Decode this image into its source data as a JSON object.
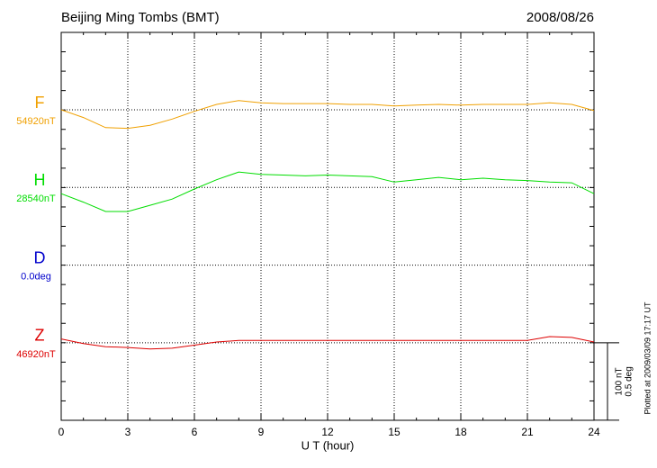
{
  "chart_data": {
    "type": "line",
    "title": "Beijing Ming Tombs (BMT)",
    "date": "2008/08/26",
    "xlabel": "U T (hour)",
    "xlim": [
      0,
      24
    ],
    "xticks": [
      0,
      3,
      6,
      9,
      12,
      15,
      18,
      21,
      24
    ],
    "x": [
      0,
      1,
      2,
      3,
      4,
      5,
      6,
      7,
      8,
      9,
      10,
      11,
      12,
      13,
      14,
      15,
      16,
      17,
      18,
      19,
      20,
      21,
      22,
      23,
      24
    ],
    "series": [
      {
        "name": "F",
        "color": "#f0a000",
        "baseline": {
          "value": 54920,
          "label": "54920nT"
        },
        "values": [
          54920,
          54910,
          54897,
          54896,
          54900,
          54908,
          54918,
          54927,
          54932,
          54929,
          54928,
          54928,
          54928,
          54927,
          54927,
          54925,
          54926,
          54927,
          54926,
          54927,
          54927,
          54927,
          54929,
          54927,
          54919
        ]
      },
      {
        "name": "H",
        "color": "#00dd00",
        "baseline": {
          "value": 28540,
          "label": "28540nT"
        },
        "values": [
          28532,
          28521,
          28509,
          28509,
          28517,
          28525,
          28538,
          28550,
          28560,
          28557,
          28556,
          28555,
          28556,
          28555,
          28554,
          28547,
          28550,
          28553,
          28550,
          28552,
          28550,
          28549,
          28547,
          28546,
          28532
        ]
      },
      {
        "name": "D",
        "color": "#0000cc",
        "baseline": {
          "value": 0,
          "label": "0.0deg"
        }
      },
      {
        "name": "Z",
        "color": "#dd0000",
        "baseline": {
          "value": 46920,
          "label": "46920nT"
        },
        "values": [
          46925,
          46919,
          46915,
          46914,
          46912,
          46913,
          46917,
          46921,
          46923,
          46923,
          46923,
          46923,
          46923,
          46923,
          46923,
          46923,
          46923,
          46923,
          46923,
          46923,
          46923,
          46923,
          46928,
          46927,
          46921
        ]
      }
    ],
    "scale": {
      "value": 100,
      "label": "100 nT"
    },
    "scale_deg": "0.5 deg",
    "footnote": "Plotted at 2009/03/09 17:17 UT"
  }
}
